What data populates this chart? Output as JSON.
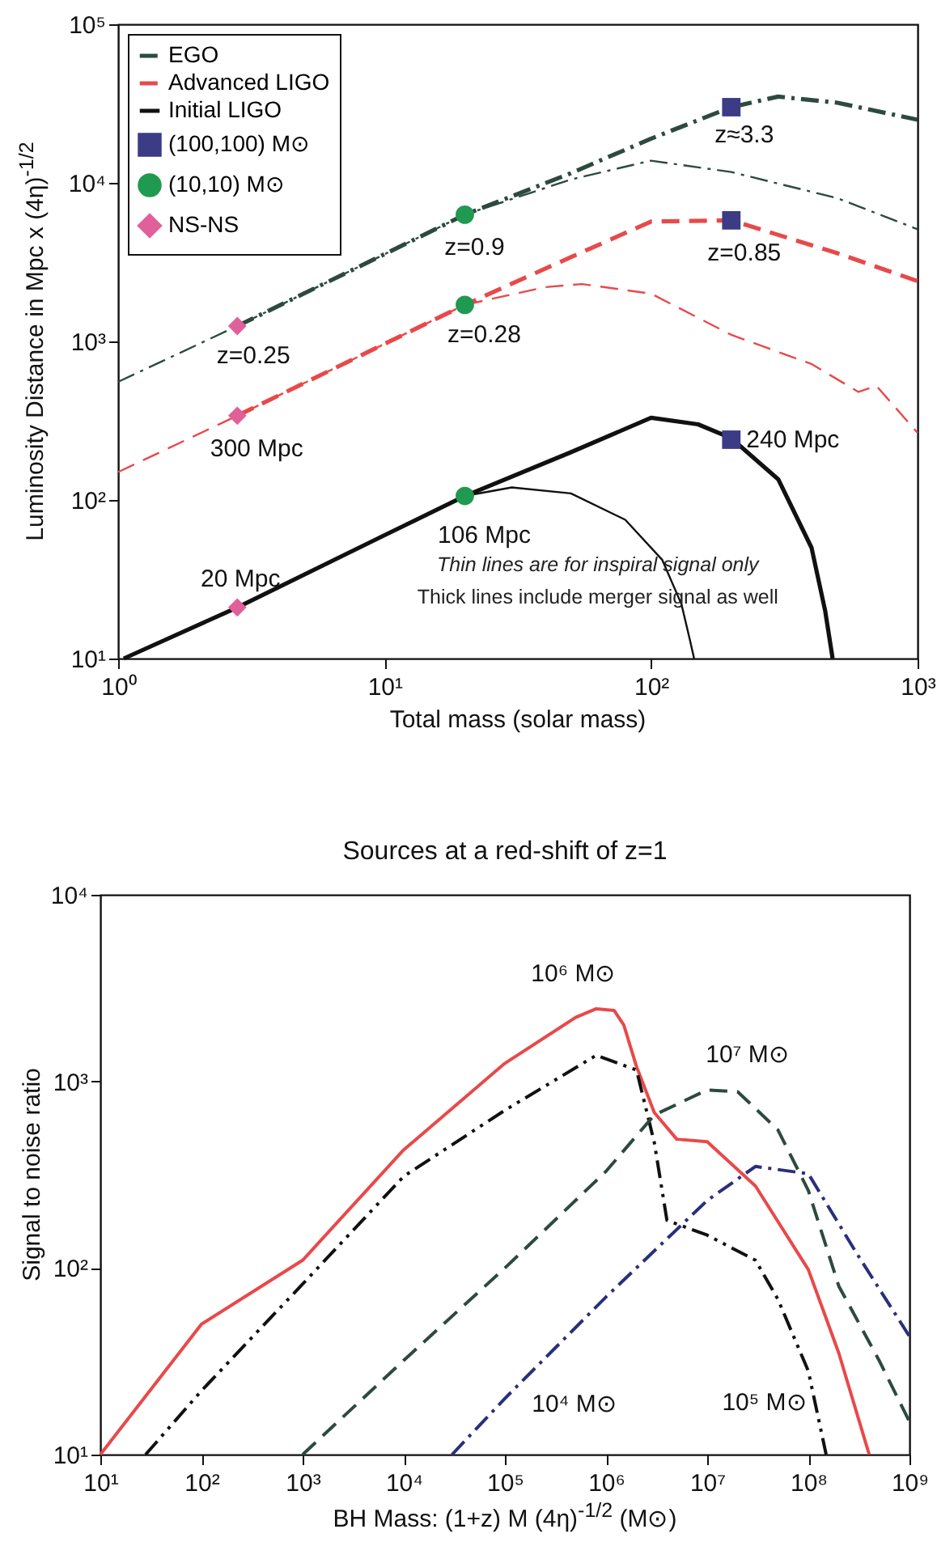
{
  "chart_data": [
    {
      "type": "line",
      "xlabel": "Total mass (solar mass)",
      "ylabel": "Luminosity Distance in Mpc x (4η)$^{-1/2}$",
      "log": "xy",
      "grid": false,
      "legend": "top left",
      "xlim": [
        1,
        1000
      ],
      "xticks": [
        {
          "value": 1,
          "label": "10⁰"
        },
        {
          "value": 10,
          "label": "10¹"
        },
        {
          "value": 100,
          "label": "10²"
        },
        {
          "value": 1000,
          "label": "10³"
        }
      ],
      "ylim": [
        10,
        100000
      ],
      "yticks": [
        {
          "value": 10,
          "label": "10¹"
        },
        {
          "value": 100,
          "label": "10²"
        },
        {
          "value": 1000,
          "label": "10³"
        },
        {
          "value": 10000,
          "label": "10⁴"
        },
        {
          "value": 100000,
          "label": "10⁵"
        }
      ],
      "series": [
        {
          "name": "EGO",
          "color": "#2d4a3e",
          "line_style": "dashdot",
          "x": [
            2.8,
            10,
            20,
            50,
            100,
            200,
            300,
            500,
            1000
          ],
          "values": [
            1250,
            3550,
            6300,
            11500,
            19000,
            30000,
            35000,
            32000,
            25000
          ]
        },
        {
          "name": "Advanced LIGO",
          "color": "#e8494a",
          "line_style": "dashed",
          "x": [
            2.8,
            10,
            20,
            50,
            100,
            200,
            500,
            1000
          ],
          "values": [
            340,
            965,
            1700,
            3400,
            5700,
            5800,
            3600,
            2400
          ]
        },
        {
          "name": "Initial LIGO",
          "color": "#111111",
          "line_style": "solid",
          "x": [
            1.05,
            2.8,
            10,
            20,
            50,
            100,
            150,
            200,
            300,
            400,
            450,
            480
          ],
          "values": [
            10,
            21,
            60,
            106,
            200,
            330,
            300,
            245,
            135,
            50,
            20,
            10
          ]
        },
        {
          "color": "#2d4a3e",
          "line_style": "dashdot",
          "x": [
            1,
            2.8,
            10,
            20,
            50,
            100,
            200,
            500,
            1000
          ],
          "values": [
            556,
            1250,
            3550,
            6300,
            10500,
            13800,
            11700,
            8000,
            5100
          ]
        },
        {
          "color": "#e8494a",
          "line_style": "dashed",
          "x": [
            1,
            2.8,
            10,
            20,
            40,
            55,
            100,
            200,
            400,
            600,
            700,
            1000
          ],
          "values": [
            150,
            340,
            965,
            1700,
            2200,
            2300,
            2000,
            1100,
            720,
            480,
            525,
            265
          ]
        },
        {
          "color": "#111111",
          "line_style": "solid",
          "x": [
            20,
            30,
            50,
            80,
            110,
            130,
            140,
            145
          ],
          "values": [
            106,
            120,
            110,
            75,
            42,
            22,
            13,
            10
          ]
        },
        {
          "name": "(100,100) M⊙",
          "type": "scatter",
          "marker": "square",
          "color": "#3b3b86",
          "x": [
            200,
            200,
            200
          ],
          "values": [
            30000,
            5800,
            240
          ]
        },
        {
          "name": "(10,10) M⊙",
          "type": "scatter",
          "marker": "circle",
          "color": "#1f9a50",
          "x": [
            20,
            20,
            20
          ],
          "values": [
            6300,
            1700,
            106
          ]
        },
        {
          "name": "NS-NS",
          "type": "scatter",
          "marker": "diamond",
          "color": "#e0609a",
          "x": [
            2.8,
            2.8,
            2.8
          ],
          "values": [
            1250,
            340,
            21
          ]
        }
      ],
      "annotations": [
        {
          "text": "z≈3.3",
          "x": 200,
          "y": 30000
        },
        {
          "text": "z=0.9",
          "x": 20,
          "y": 6300
        },
        {
          "text": "z=0.85",
          "x": 200,
          "y": 5800
        },
        {
          "text": "z=0.28",
          "x": 20,
          "y": 1700
        },
        {
          "text": "z=0.25",
          "x": 2.8,
          "y": 1250
        },
        {
          "text": "300 Mpc",
          "x": 2.8,
          "y": 340
        },
        {
          "text": "106 Mpc",
          "x": 20,
          "y": 106
        },
        {
          "text": "240 Mpc",
          "x": 200,
          "y": 240
        },
        {
          "text": "20 Mpc",
          "x": 2.8,
          "y": 21
        },
        "Thin lines are for inspiral signal only",
        "Thick lines include merger signal as well"
      ]
    },
    {
      "type": "line",
      "title": "Sources at a red-shift of z=1",
      "xlabel": "BH Mass: (1+z) M (4η)$^{-1/2}$ (M⊙)",
      "ylabel": "Signal to noise ratio",
      "log": "xy",
      "grid": false,
      "xlim": [
        10,
        1000000000
      ],
      "xticks": [
        {
          "value": 10,
          "label": "10¹"
        },
        {
          "value": 100,
          "label": "10²"
        },
        {
          "value": 1000,
          "label": "10³"
        },
        {
          "value": 10000,
          "label": "10⁴"
        },
        {
          "value": 100000,
          "label": "10⁵"
        },
        {
          "value": 1000000,
          "label": "10⁶"
        },
        {
          "value": 10000000,
          "label": "10⁷"
        },
        {
          "value": 100000000,
          "label": "10⁸"
        },
        {
          "value": 1000000000,
          "label": "10⁹"
        }
      ],
      "ylim": [
        10,
        10000
      ],
      "yticks": [
        {
          "value": 10,
          "label": "10¹"
        },
        {
          "value": 100,
          "label": "10²"
        },
        {
          "value": 1000,
          "label": "10³"
        },
        {
          "value": 10000,
          "label": "10⁴"
        }
      ],
      "series": [
        {
          "color": "#e8494a",
          "line_style": "solid",
          "x": [
            10,
            100,
            1000,
            10000,
            100000,
            500000,
            800000,
            1200000,
            1500000,
            2000000,
            3000000,
            5000000,
            10000000,
            30000000,
            100000000,
            200000000,
            400000000
          ],
          "values": [
            10,
            50,
            110,
            430,
            1250,
            2200,
            2450,
            2400,
            2000,
            1200,
            680,
            490,
            475,
            275,
            98,
            35,
            10
          ]
        },
        {
          "color": "#111111",
          "line_style": "dashdotdot",
          "x": [
            28,
            100,
            1000,
            10000,
            100000,
            800000,
            2000000,
            3000000,
            4000000,
            10000000,
            30000000,
            50000000,
            100000000,
            150000000
          ],
          "values": [
            10,
            22,
            82,
            310,
            700,
            1380,
            1150,
            470,
            180,
            150,
            110,
            68,
            28,
            10
          ]
        },
        {
          "color": "#2d4a3e",
          "line_style": "dashed",
          "x": [
            1000,
            10000,
            100000,
            1000000,
            3000000,
            10000000,
            20000000,
            50000000,
            100000000,
            200000000,
            500000000,
            1000000000
          ],
          "values": [
            10,
            32,
            100,
            330,
            660,
            900,
            880,
            550,
            260,
            80,
            32,
            15
          ]
        },
        {
          "color": "#2b2f7a",
          "line_style": "dashdot",
          "x": [
            30000,
            100000,
            1000000,
            10000000,
            30000000,
            100000000,
            300000000,
            1000000000
          ],
          "values": [
            10,
            20,
            70,
            230,
            350,
            320,
            120,
            43
          ]
        }
      ],
      "annotations": [
        {
          "text": "10⁶ M⊙",
          "x": 800000,
          "y": 2450
        },
        {
          "text": "10⁷ M⊙",
          "x": 10000000,
          "y": 900
        },
        {
          "text": "10⁴ M⊙",
          "x": 100000,
          "y": 20
        },
        {
          "text": "10⁵ M⊙",
          "x": 100000000,
          "y": 28
        }
      ]
    }
  ]
}
